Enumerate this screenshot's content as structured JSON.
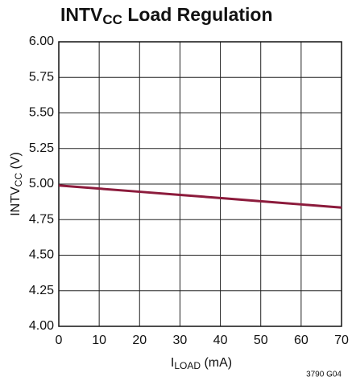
{
  "chart_data": {
    "type": "line",
    "title": [
      "INTV",
      "CC",
      " Load Regulation"
    ],
    "ylabel": [
      "INTV",
      "CC",
      " (V)"
    ],
    "xlabel": [
      "I",
      "LOAD",
      " (mA)"
    ],
    "annotation": "3790 G04",
    "x": [
      0,
      10,
      20,
      30,
      40,
      50,
      60,
      70
    ],
    "series": [
      {
        "name": "INTVCC",
        "color": "#8c1b3c",
        "values": [
          4.99,
          4.968,
          4.946,
          4.924,
          4.902,
          4.879,
          4.857,
          4.835
        ]
      }
    ],
    "xlim": [
      0,
      70
    ],
    "xticks": [
      0,
      10,
      20,
      30,
      40,
      50,
      60,
      70
    ],
    "ylim": [
      4,
      6
    ],
    "yticks": [
      {
        "value": 4,
        "label": "4.00"
      },
      {
        "value": 4.25,
        "label": "4.25"
      },
      {
        "value": 4.5,
        "label": "4.50"
      },
      {
        "value": 4.75,
        "label": "4.75"
      },
      {
        "value": 5,
        "label": "5.00"
      },
      {
        "value": 5.25,
        "label": "5.25"
      },
      {
        "value": 5.5,
        "label": "5.50"
      },
      {
        "value": 5.75,
        "label": "5.75"
      },
      {
        "value": 6,
        "label": "6.00"
      }
    ],
    "grid": true
  }
}
